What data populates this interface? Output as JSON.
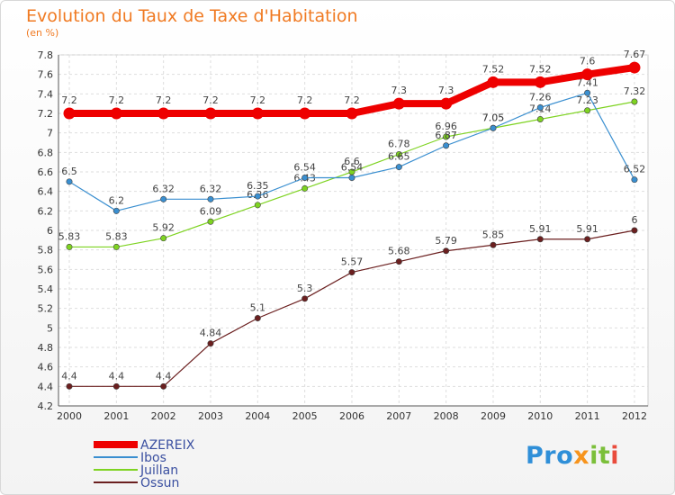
{
  "title": "Evolution du Taux de Taxe d'Habitation",
  "subtitle": "(en %)",
  "logo": {
    "text": "Proxiti",
    "parts": [
      "Pro",
      "x",
      "it",
      "i"
    ]
  },
  "chart_data": {
    "type": "line",
    "title": "Evolution du Taux de Taxe d'Habitation",
    "ylabel": "(en %)",
    "x": [
      "2000",
      "2001",
      "2002",
      "2003",
      "2004",
      "2005",
      "2006",
      "2007",
      "2008",
      "2009",
      "2010",
      "2011",
      "2012"
    ],
    "ylim": [
      4.2,
      7.8
    ],
    "yticks": [
      "4.2",
      "4.4",
      "4.6",
      "4.8",
      "5",
      "5.2",
      "5.4",
      "5.6",
      "5.8",
      "6",
      "6.2",
      "6.4",
      "6.6",
      "6.8",
      "7",
      "7.2",
      "7.4",
      "7.6",
      "7.8"
    ],
    "grid": true,
    "legend_position": "bottom-left",
    "series": [
      {
        "name": "AZEREIX",
        "color": "#ee0000",
        "values": [
          7.2,
          7.2,
          7.2,
          7.2,
          7.2,
          7.2,
          7.2,
          7.3,
          7.3,
          7.52,
          7.52,
          7.6,
          7.67
        ],
        "labels": [
          "7.2",
          "7.2",
          "7.2",
          "7.2",
          "7.2",
          "7.2",
          "7.2",
          "7.3",
          "7.3",
          "7.52",
          "7.52",
          "7.6",
          "7.67"
        ]
      },
      {
        "name": "Ibos",
        "color": "#3a8fd0",
        "values": [
          6.5,
          6.2,
          6.32,
          6.32,
          6.35,
          6.54,
          6.54,
          6.65,
          6.87,
          7.05,
          7.26,
          7.41,
          6.52
        ],
        "labels": [
          "6.5",
          "6.2",
          "6.32",
          "6.32",
          "6.35",
          "6.54",
          "6.54",
          "6.65",
          "6.87",
          "7.05",
          "7.26",
          "7.41",
          "6.52"
        ]
      },
      {
        "name": "Juillan",
        "color": "#7ed321",
        "values": [
          5.83,
          5.83,
          5.92,
          6.09,
          6.26,
          6.43,
          6.6,
          6.78,
          6.96,
          7.05,
          7.14,
          7.23,
          7.32
        ],
        "labels": [
          "5.83",
          "5.83",
          "5.92",
          "6.09",
          "6.26",
          "6.43",
          "6.6",
          "6.78",
          "6.96",
          "7.05",
          "7.14",
          "7.23",
          "7.32"
        ]
      },
      {
        "name": "Ossun",
        "color": "#6b1f1f",
        "values": [
          4.4,
          4.4,
          4.4,
          4.84,
          5.1,
          5.3,
          5.57,
          5.68,
          5.79,
          5.85,
          5.91,
          5.91,
          6
        ],
        "labels": [
          "4.4",
          "4.4",
          "4.4",
          "4.84",
          "5.1",
          "5.3",
          "5.57",
          "5.68",
          "5.79",
          "5.85",
          "5.91",
          "5.91",
          "6"
        ]
      }
    ]
  }
}
